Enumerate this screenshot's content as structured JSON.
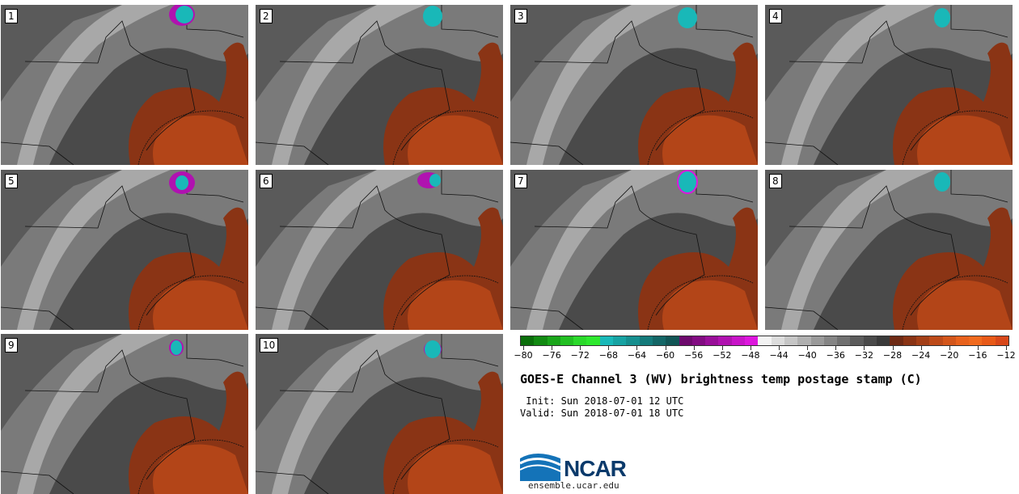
{
  "panels": [
    {
      "label": "1"
    },
    {
      "label": "2"
    },
    {
      "label": "3"
    },
    {
      "label": "4"
    },
    {
      "label": "5"
    },
    {
      "label": "6"
    },
    {
      "label": "7"
    },
    {
      "label": "8"
    },
    {
      "label": "9"
    },
    {
      "label": "10"
    }
  ],
  "colorbar": {
    "colors": [
      "#0a6e0a",
      "#128a12",
      "#1aa51a",
      "#22bf22",
      "#2bd92b",
      "#2ee82e",
      "#19b8b8",
      "#17a3a3",
      "#168f8f",
      "#147a7a",
      "#136666",
      "#115555",
      "#6d0a6d",
      "#820c82",
      "#990f99",
      "#b012b0",
      "#c814c8",
      "#dd17dd",
      "#f3f3f3",
      "#dcdcdc",
      "#c6c6c6",
      "#b0b0b0",
      "#9a9a9a",
      "#858585",
      "#707070",
      "#5c5c5c",
      "#4a4a4a",
      "#3a3a3a",
      "#6e2a14",
      "#8a3415",
      "#a33f17",
      "#bd4a19",
      "#d3561b",
      "#e8621d",
      "#f06a1e",
      "#e85a18",
      "#d8481a"
    ],
    "tick_labels": [
      "-80",
      "-76",
      "-72",
      "-68",
      "-64",
      "-60",
      "-56",
      "-52",
      "-48",
      "-44",
      "-40",
      "-36",
      "-32",
      "-28",
      "-24",
      "-20",
      "-16",
      "-12"
    ]
  },
  "title": "GOES-E Channel 3 (WV) brightness temp postage stamp (C)",
  "init": " Init: Sun 2018-07-01 12 UTC",
  "valid": "Valid: Sun 2018-07-01 18 UTC",
  "logo": {
    "text": "NCAR",
    "url": "ensemble.ucar.edu"
  }
}
